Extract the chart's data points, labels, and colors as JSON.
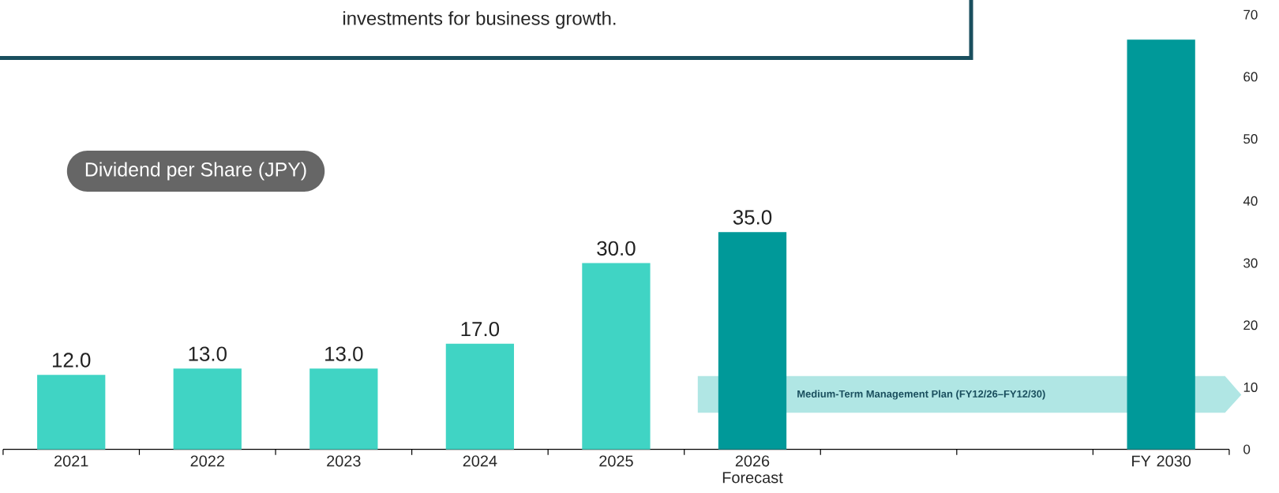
{
  "chart_data": {
    "type": "bar",
    "title": "Dividend per Share (JPY)",
    "annotations": [
      "investments for business growth.",
      "Medium-Term Management Plan (FY12/26–FY12/30)"
    ],
    "categories": [
      "2021",
      "2022",
      "2023",
      "2024",
      "2025",
      "2026 Forecast",
      null,
      null,
      "FY 2030"
    ],
    "values": [
      12,
      13,
      13,
      17,
      30,
      35,
      null,
      null,
      66
    ],
    "colors": [
      "#40d4c4",
      "#40d4c4",
      "#40d4c4",
      "#40d4c4",
      "#40d4c4",
      "#009999",
      "#009999",
      "#009999",
      "#009999"
    ],
    "value_labels": [
      "12.0",
      "13.0",
      "13.0",
      "17.0",
      "30.0",
      "35.0",
      null,
      null,
      null
    ],
    "ylim": [
      0,
      70
    ],
    "yticks": [
      0,
      10,
      20,
      30,
      40,
      50,
      60,
      70
    ]
  }
}
